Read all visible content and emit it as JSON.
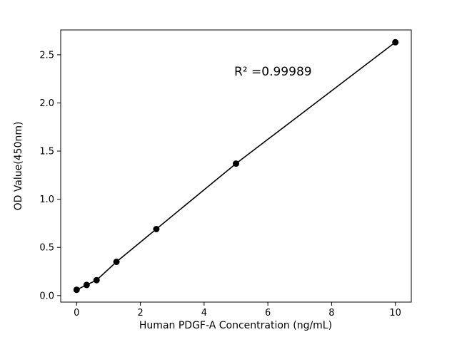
{
  "chart_data": {
    "type": "scatter",
    "title": "",
    "xlabel": "Human PDGF-A Concentration (ng/mL)",
    "ylabel": "OD Value(450nm)",
    "annotation": "R² =0.99989",
    "x": [
      0,
      0.3125,
      0.625,
      1.25,
      2.5,
      5,
      10
    ],
    "y": [
      0.06,
      0.11,
      0.16,
      0.35,
      0.69,
      1.37,
      2.63
    ],
    "xticks": [
      0,
      2,
      4,
      6,
      8,
      10
    ],
    "yticks": [
      0.0,
      0.5,
      1.0,
      1.5,
      2.0,
      2.5
    ],
    "xlim": [
      -0.5,
      10.5
    ],
    "ylim": [
      -0.068,
      2.758
    ],
    "marker": "circle",
    "marker_color": "#000000",
    "line_color": "#000000",
    "axis_color": "#000000",
    "background_color": "#ffffff",
    "grid": false,
    "legend": "none"
  }
}
